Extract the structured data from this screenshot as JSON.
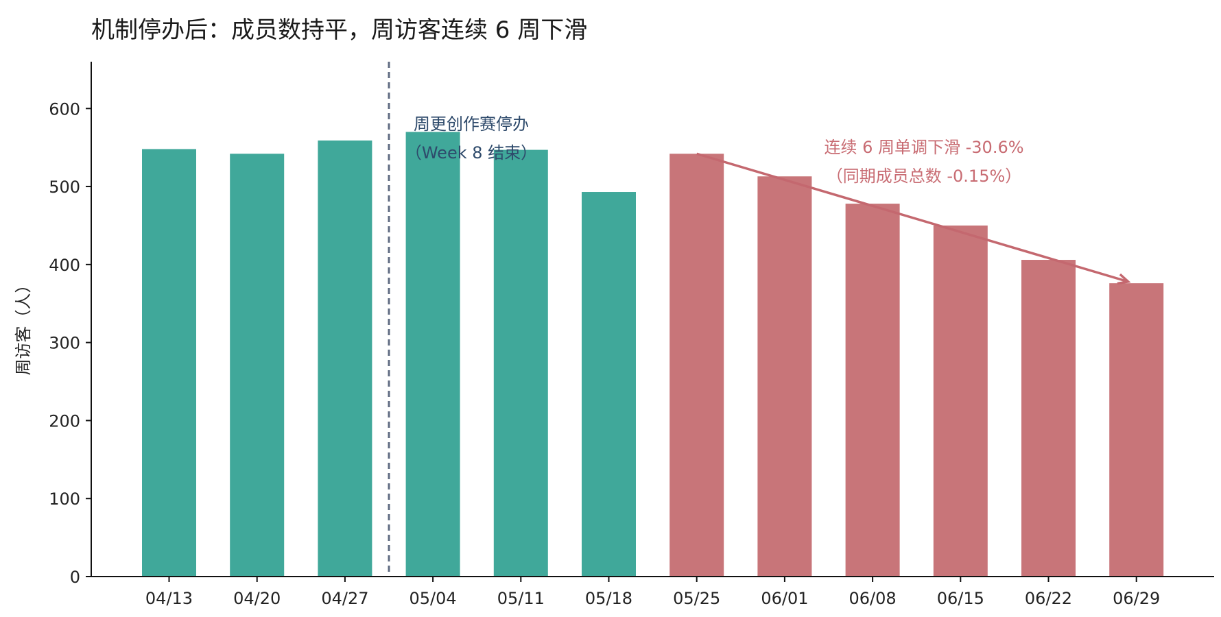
{
  "chart_data": {
    "type": "bar",
    "title": "机制停办后：成员数持平，周访客连续 6 周下滑",
    "xlabel": "",
    "ylabel": "周访客（人）",
    "ylim": [
      0,
      660
    ],
    "yticks": [
      0,
      100,
      200,
      300,
      400,
      500,
      600
    ],
    "grid": false,
    "categories": [
      "04/13",
      "04/20",
      "04/27",
      "05/04",
      "05/11",
      "05/18",
      "05/25",
      "06/01",
      "06/08",
      "06/15",
      "06/22",
      "06/29"
    ],
    "values": [
      548,
      542,
      559,
      570,
      547,
      493,
      542,
      513,
      478,
      450,
      406,
      376
    ],
    "colors": {
      "before": "#40a89a",
      "decline": "#c87579",
      "cutoff_line": "#5f6b82",
      "annotation_blue": "#2e4a6b",
      "annotation_red": "#c86b72",
      "arrow": "#c4686f"
    },
    "decline_start_index": 6,
    "cutoff_between": [
      "04/27",
      "05/04"
    ],
    "annotations": {
      "cutoff_line1": "周更创作赛停办",
      "cutoff_line2": "（Week 8 结束）",
      "trend_line1": "连续 6 周单调下滑 -30.6%",
      "trend_line2": "（同期成员总数 -0.15%）"
    },
    "trend_arrow": {
      "from_category": "05/25",
      "from_value": 542,
      "to_category": "06/29",
      "to_value": 378
    }
  }
}
